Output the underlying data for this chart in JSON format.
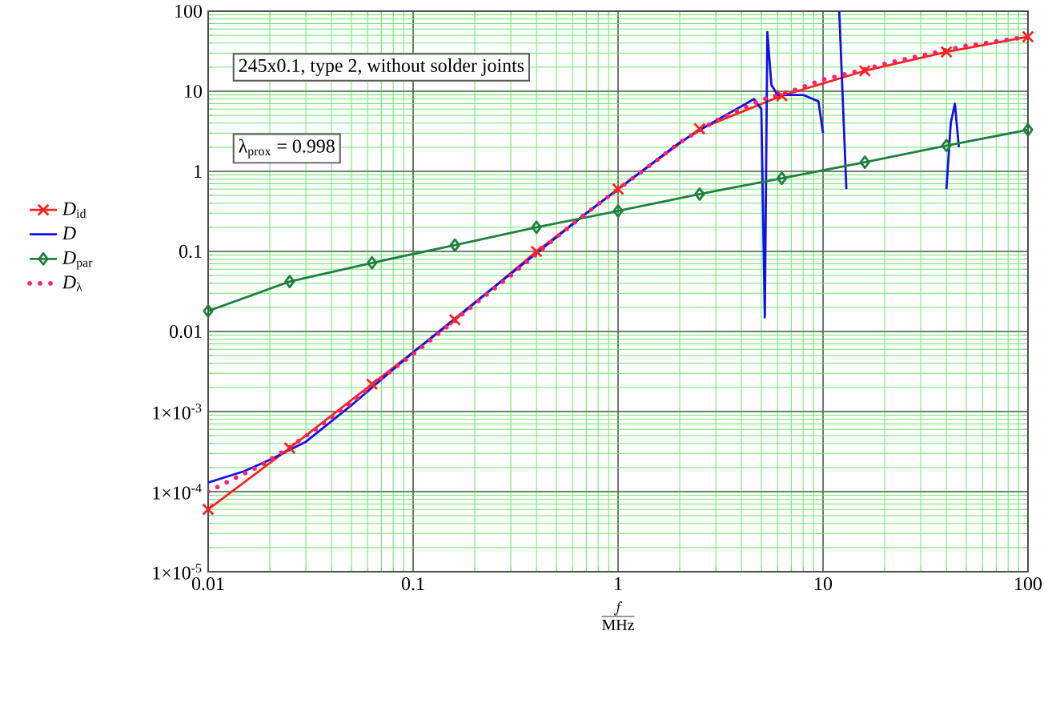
{
  "chart_data": {
    "type": "line",
    "xlabel": "\\frac{f}{\\mathrm{MHz}}",
    "log": "xy",
    "grid": true,
    "legend": "left",
    "xlim": [
      0.01,
      100
    ],
    "xticks": [
      0.01,
      0.1,
      1,
      10,
      100
    ],
    "ylim": [
      1e-05,
      100
    ],
    "yticks": [
      {
        "value": 1e-05,
        "label": "1×10$^{-5}$"
      },
      {
        "value": 0.0001,
        "label": "1×10$^{-4}$"
      },
      {
        "value": 0.001,
        "label": "1×10$^{-3}$"
      },
      0.01,
      0.1,
      1,
      10,
      100
    ],
    "annotations": [
      "245x0.1, type 2, without solder joints",
      "λ$_{prox}$ = 0.998"
    ],
    "series": [
      {
        "name": "*D*$_{id}$",
        "color": "#ff2020",
        "marker": "cross",
        "line_style": "solid",
        "x": [
          0.01,
          0.025,
          0.063,
          0.16,
          0.4,
          1,
          2.5,
          6.3,
          16,
          40,
          100
        ],
        "values": [
          6e-05,
          0.00035,
          0.0022,
          0.014,
          0.1,
          0.6,
          3.4,
          8.8,
          18,
          31,
          48
        ]
      },
      {
        "name": "*D*",
        "color": "#1010ee",
        "marker": "none",
        "line_style": "solid",
        "x": [
          0.01,
          0.015,
          0.02,
          0.03,
          0.05,
          0.1,
          0.2,
          0.5,
          0.7,
          1,
          2,
          3,
          4,
          4.6,
          5,
          5.2,
          5.35,
          5.6,
          6,
          8,
          9.5,
          10,
          11,
          12,
          13,
          20,
          40,
          42,
          44,
          46
        ],
        "values": [
          0.00013,
          0.00018,
          0.00025,
          0.00042,
          0.0012,
          0.0055,
          0.023,
          0.15,
          0.3,
          0.6,
          2.3,
          4.3,
          6.5,
          8,
          6,
          0.015,
          55,
          12,
          9,
          9,
          7.5,
          3,
          null,
          100,
          0.6,
          null,
          0.6,
          4,
          7,
          2
        ]
      },
      {
        "name": "*D*$_{par}$",
        "color": "#208040",
        "marker": "diamond",
        "line_style": "solid",
        "x": [
          0.01,
          0.025,
          0.063,
          0.16,
          0.4,
          1,
          2.5,
          6.3,
          16,
          40,
          100
        ],
        "values": [
          0.018,
          0.042,
          0.072,
          0.12,
          0.2,
          0.32,
          0.52,
          0.82,
          1.3,
          2.1,
          3.3
        ]
      },
      {
        "name": "*D*$_{λ}$",
        "color": "#ff1f6f",
        "marker": "none",
        "line_style": "dotted",
        "x": [
          0.01,
          0.013,
          0.018,
          0.025,
          0.035,
          0.05,
          0.07,
          0.1,
          0.15,
          0.2,
          0.3,
          0.5,
          0.7,
          1,
          1.5,
          2,
          3,
          4,
          5,
          7,
          10,
          15,
          20,
          30,
          50,
          70,
          100
        ],
        "values": [
          0.0001,
          0.00014,
          0.00021,
          0.00036,
          0.00065,
          0.0013,
          0.0026,
          0.0052,
          0.012,
          0.022,
          0.05,
          0.15,
          0.3,
          0.6,
          1.3,
          2.3,
          4.3,
          6,
          7.8,
          10,
          14,
          18,
          22,
          28,
          37,
          42,
          48
        ]
      }
    ]
  }
}
